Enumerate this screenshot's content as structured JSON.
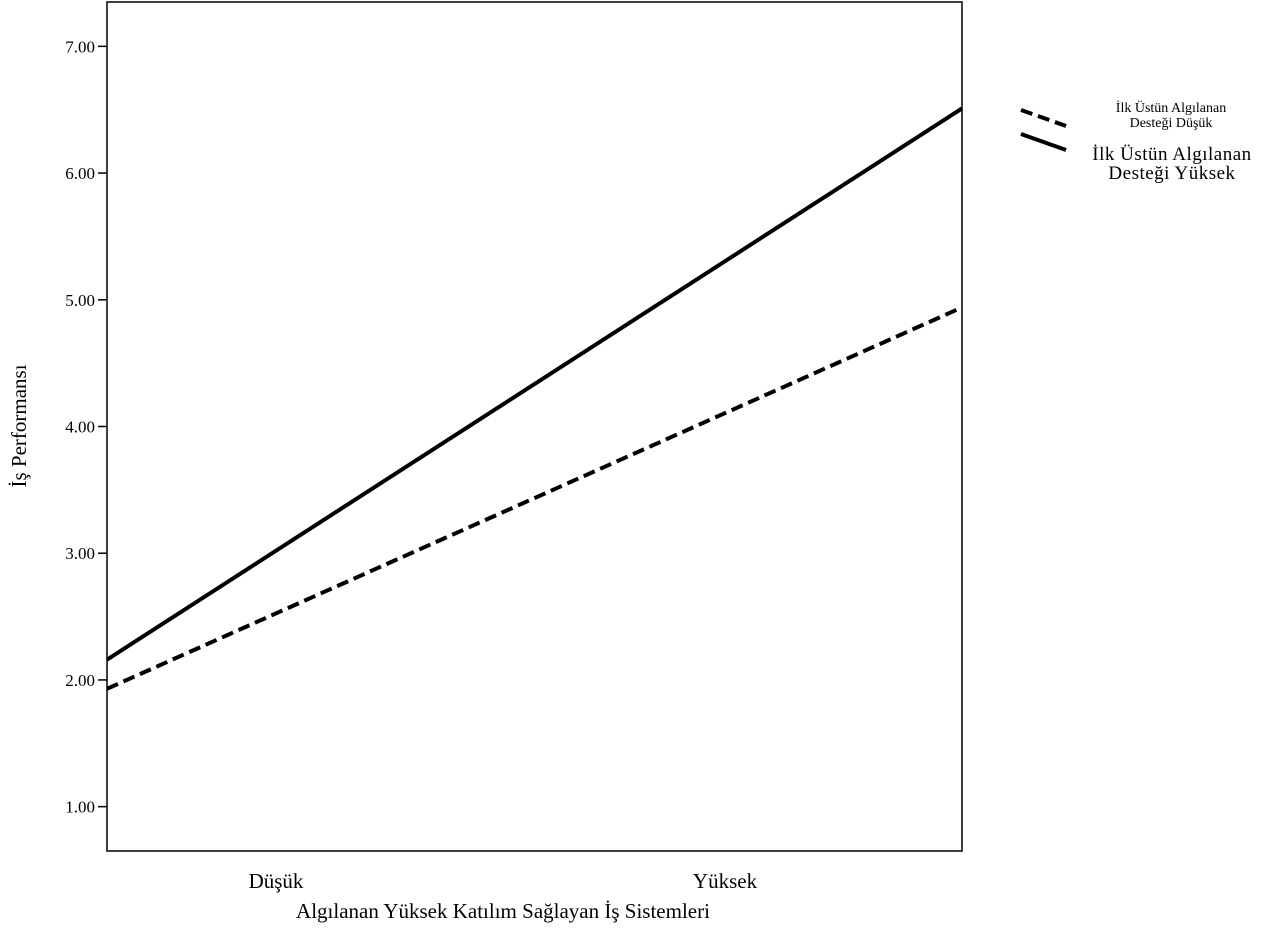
{
  "chart_data": {
    "type": "line",
    "xlabel": "Algılanan Yüksek Katılım Sağlayan İş Sistemleri",
    "ylabel": "İş Performansı",
    "categories": [
      "Düşük",
      "Yüksek"
    ],
    "ylim": [
      0.65,
      7.35
    ],
    "yticks": [
      "1.00",
      "2.00",
      "3.00",
      "4.00",
      "5.00",
      "6.00",
      "7.00"
    ],
    "grid": false,
    "legend_position": "right",
    "series": [
      {
        "name": "İlk Üstün Algılanan Desteği Düşük",
        "name_lines": [
          "İlk Üstün Algılanan",
          "Desteği Düşük"
        ],
        "style": "dashed",
        "color": "#000000",
        "values": [
          1.93,
          4.94
        ]
      },
      {
        "name": "İlk Üstün Algılanan Desteği Yüksek",
        "name_lines": [
          "İlk Üstün Algılanan",
          "Desteği Yüksek"
        ],
        "style": "solid",
        "color": "#000000",
        "values": [
          2.16,
          6.51
        ]
      }
    ]
  }
}
